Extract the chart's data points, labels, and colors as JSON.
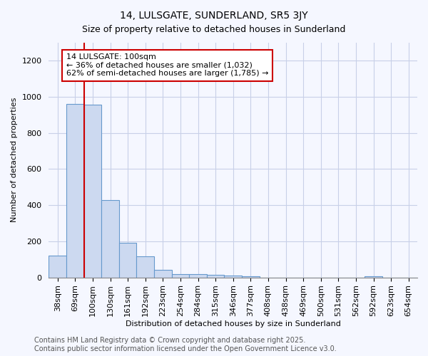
{
  "title": "14, LULSGATE, SUNDERLAND, SR5 3JY",
  "subtitle": "Size of property relative to detached houses in Sunderland",
  "xlabel": "Distribution of detached houses by size in Sunderland",
  "ylabel": "Number of detached properties",
  "categories": [
    "38sqm",
    "69sqm",
    "100sqm",
    "130sqm",
    "161sqm",
    "192sqm",
    "223sqm",
    "254sqm",
    "284sqm",
    "315sqm",
    "346sqm",
    "377sqm",
    "408sqm",
    "438sqm",
    "469sqm",
    "500sqm",
    "531sqm",
    "562sqm",
    "592sqm",
    "623sqm",
    "654sqm"
  ],
  "values": [
    120,
    960,
    955,
    430,
    190,
    115,
    40,
    20,
    18,
    15,
    10,
    7,
    0,
    0,
    0,
    0,
    0,
    0,
    8,
    0,
    0
  ],
  "bar_color": "#ccd9f0",
  "bar_edge_color": "#6699cc",
  "red_line_index": 2,
  "annotation_text": "14 LULSGATE: 100sqm\n← 36% of detached houses are smaller (1,032)\n62% of semi-detached houses are larger (1,785) →",
  "annotation_box_facecolor": "#ffffff",
  "annotation_box_edgecolor": "#cc0000",
  "ylim": [
    0,
    1300
  ],
  "yticks": [
    0,
    200,
    400,
    600,
    800,
    1000,
    1200
  ],
  "background_color": "#f5f7ff",
  "grid_color": "#c8d0e8",
  "title_fontsize": 10,
  "subtitle_fontsize": 9,
  "axis_fontsize": 8,
  "tick_fontsize": 8,
  "annotation_fontsize": 8,
  "footer_fontsize": 7,
  "footer_line1": "Contains HM Land Registry data © Crown copyright and database right 2025.",
  "footer_line2": "Contains public sector information licensed under the Open Government Licence v3.0."
}
